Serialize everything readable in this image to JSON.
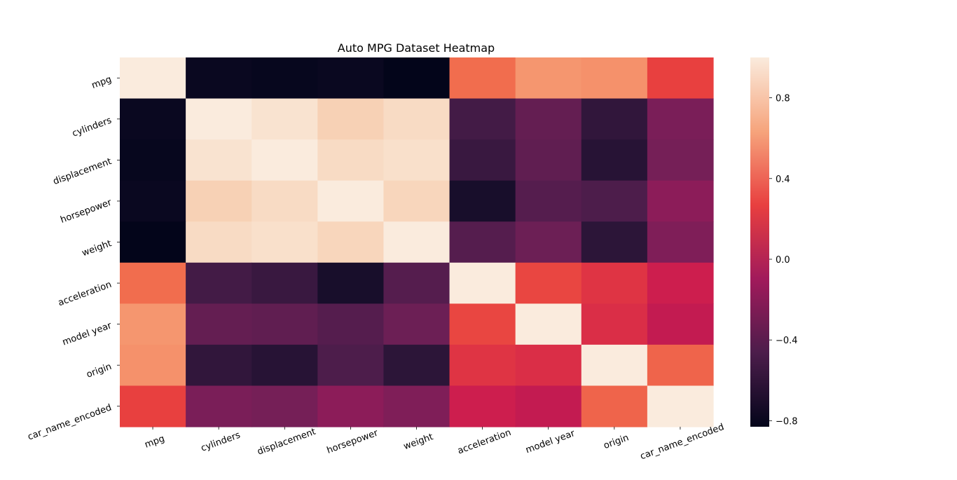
{
  "chart_data": {
    "type": "heatmap",
    "title": "Auto MPG Dataset Heatmap",
    "xlabel": "",
    "ylabel": "",
    "rows": [
      "mpg",
      "cylinders",
      "displacement",
      "horsepower",
      "weight",
      "acceleration",
      "model year",
      "origin",
      "car_name_encoded"
    ],
    "columns": [
      "mpg",
      "cylinders",
      "displacement",
      "horsepower",
      "weight",
      "acceleration",
      "model year",
      "origin",
      "car_name_encoded"
    ],
    "values": [
      [
        1.0,
        -0.78,
        -0.8,
        -0.78,
        -0.83,
        0.42,
        0.58,
        0.56,
        0.27
      ],
      [
        -0.78,
        1.0,
        0.95,
        0.84,
        0.9,
        -0.5,
        -0.35,
        -0.57,
        -0.25
      ],
      [
        -0.8,
        0.95,
        1.0,
        0.9,
        0.93,
        -0.54,
        -0.37,
        -0.61,
        -0.27
      ],
      [
        -0.78,
        0.84,
        0.9,
        1.0,
        0.87,
        -0.69,
        -0.42,
        -0.46,
        -0.18
      ],
      [
        -0.83,
        0.9,
        0.93,
        0.87,
        1.0,
        -0.42,
        -0.31,
        -0.59,
        -0.23
      ],
      [
        0.42,
        -0.5,
        -0.54,
        -0.69,
        -0.42,
        1.0,
        0.29,
        0.21,
        0.1
      ],
      [
        0.58,
        -0.35,
        -0.37,
        -0.42,
        -0.31,
        0.29,
        1.0,
        0.18,
        0.05
      ],
      [
        0.56,
        -0.57,
        -0.61,
        -0.46,
        -0.59,
        0.21,
        0.18,
        1.0,
        0.39
      ],
      [
        0.27,
        -0.25,
        -0.27,
        -0.18,
        -0.23,
        0.1,
        0.05,
        0.39,
        1.0
      ]
    ],
    "vmin": -0.83,
    "vmax": 1.0,
    "colormap": "rocket",
    "colorbar_ticks": [
      -0.8,
      -0.4,
      0.0,
      0.4,
      0.8
    ],
    "colorbar_tick_labels": [
      "−0.8",
      "−0.4",
      "0.0",
      "0.4",
      "0.8"
    ],
    "grid": false,
    "colorbar_position": "right"
  }
}
